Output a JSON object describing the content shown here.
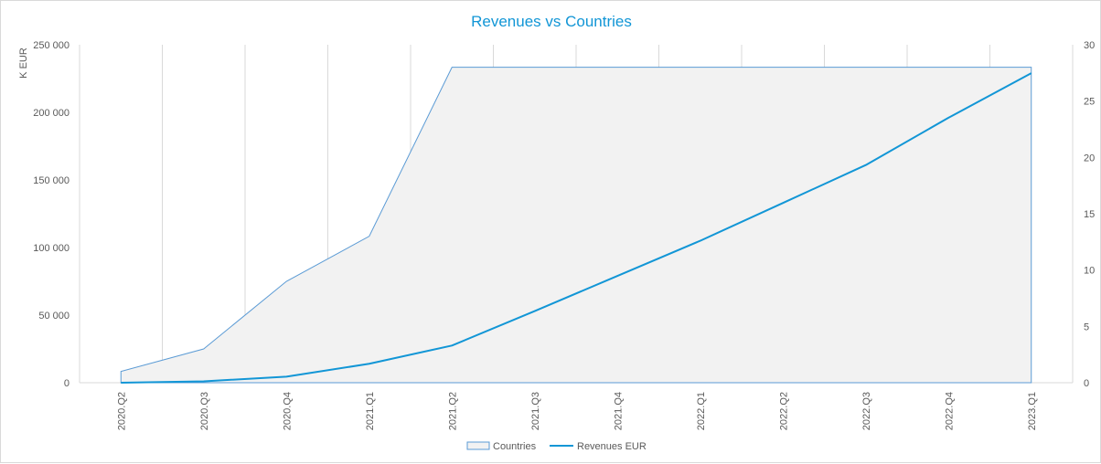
{
  "chart_data": {
    "type": "area",
    "title": "Revenues vs Countries",
    "y_left_label": "K EUR",
    "categories": [
      "2020.Q2",
      "2020.Q3",
      "2020.Q4",
      "2021.Q1",
      "2021.Q2",
      "2021.Q3",
      "2021.Q4",
      "2022.Q1",
      "2022.Q2",
      "2022.Q3",
      "2022.Q4",
      "2023.Q1"
    ],
    "y_left_ticks": [
      "0",
      "50 000",
      "100 000",
      "150 000",
      "200 000",
      "250 000"
    ],
    "y_left_range": [
      0,
      250000
    ],
    "y_right_ticks": [
      "0",
      "5",
      "10",
      "15",
      "20",
      "25",
      "30"
    ],
    "y_right_range": [
      0,
      30
    ],
    "grid": "vertical",
    "legend_position": "bottom",
    "series": [
      {
        "name": "Countries",
        "type": "area",
        "axis": "right",
        "color": "#5b9bd5",
        "fill": "#f2f2f2",
        "values": [
          1,
          3,
          9,
          13,
          28,
          28,
          28,
          28,
          28,
          28,
          28,
          28
        ]
      },
      {
        "name": "Revenues EUR",
        "type": "line",
        "axis": "left",
        "color": "#1296d6",
        "values": [
          0,
          1000,
          4500,
          14000,
          27500,
          53000,
          79000,
          105000,
          133000,
          161000,
          196000,
          229000
        ]
      }
    ]
  }
}
